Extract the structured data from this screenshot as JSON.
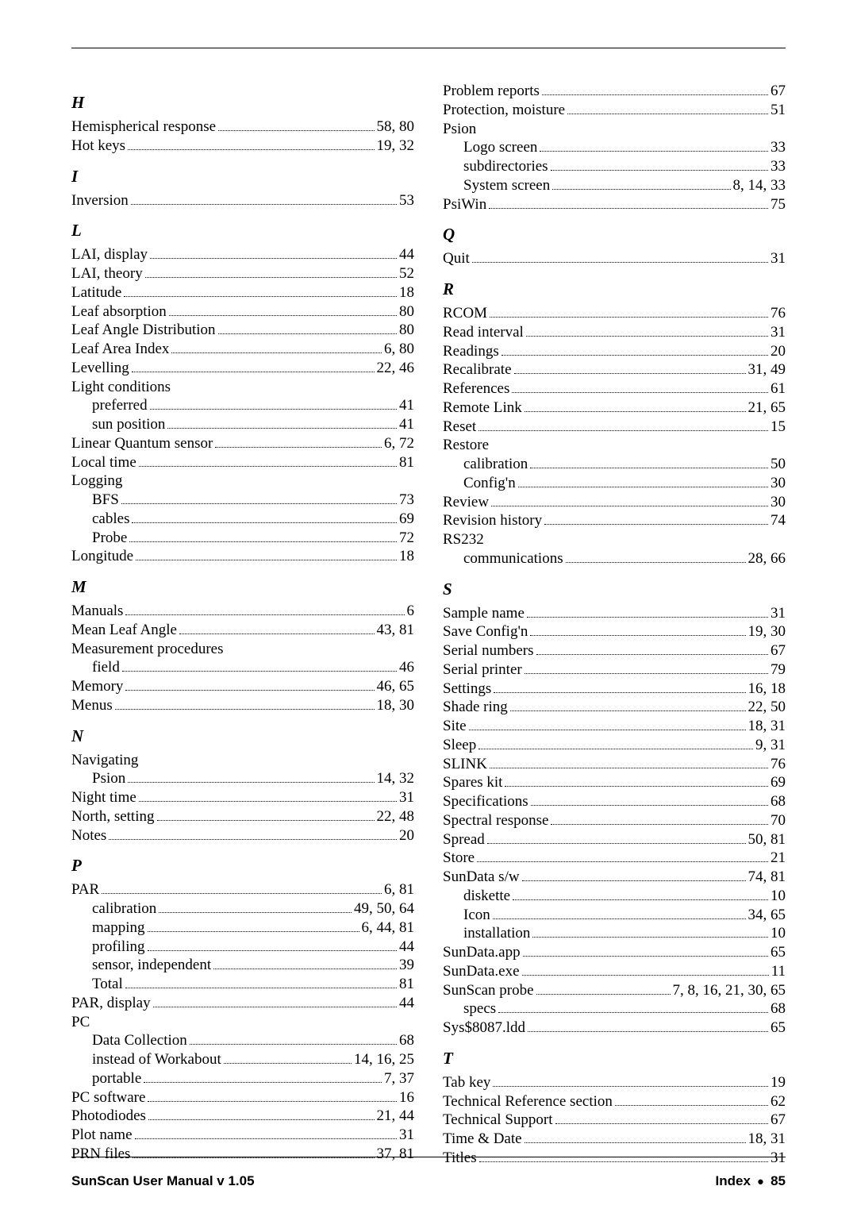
{
  "footer": {
    "left": "SunScan User Manual  v 1.05",
    "right_prefix": "Index",
    "right_page": "85"
  },
  "left": [
    {
      "type": "head",
      "text": "H"
    },
    {
      "type": "entry",
      "label": "Hemispherical response",
      "pages": "58, 80"
    },
    {
      "type": "entry",
      "label": "Hot keys",
      "pages": "19, 32"
    },
    {
      "type": "head",
      "text": "I"
    },
    {
      "type": "entry",
      "label": "Inversion",
      "pages": "53"
    },
    {
      "type": "head",
      "text": "L"
    },
    {
      "type": "entry",
      "label": "LAI, display",
      "pages": "44"
    },
    {
      "type": "entry",
      "label": "LAI, theory",
      "pages": "52"
    },
    {
      "type": "entry",
      "label": "Latitude",
      "pages": "18"
    },
    {
      "type": "entry",
      "label": "Leaf absorption",
      "pages": "80"
    },
    {
      "type": "entry",
      "label": "Leaf Angle Distribution",
      "pages": "80"
    },
    {
      "type": "entry",
      "label": "Leaf Area Index",
      "pages": "6, 80"
    },
    {
      "type": "entry",
      "label": "Levelling",
      "pages": "22, 46"
    },
    {
      "type": "plain",
      "label": "Light conditions"
    },
    {
      "type": "sub",
      "label": "preferred",
      "pages": "41"
    },
    {
      "type": "sub",
      "label": "sun position",
      "pages": "41"
    },
    {
      "type": "entry",
      "label": "Linear Quantum sensor",
      "pages": "6, 72"
    },
    {
      "type": "entry",
      "label": "Local time",
      "pages": "81"
    },
    {
      "type": "plain",
      "label": "Logging"
    },
    {
      "type": "sub",
      "label": "BFS",
      "pages": "73"
    },
    {
      "type": "sub",
      "label": "cables",
      "pages": "69"
    },
    {
      "type": "sub",
      "label": "Probe",
      "pages": "72"
    },
    {
      "type": "entry",
      "label": "Longitude",
      "pages": "18"
    },
    {
      "type": "head",
      "text": "M"
    },
    {
      "type": "entry",
      "label": "Manuals",
      "pages": "6"
    },
    {
      "type": "entry",
      "label": "Mean Leaf Angle",
      "pages": "43, 81"
    },
    {
      "type": "plain",
      "label": "Measurement procedures"
    },
    {
      "type": "sub",
      "label": "field",
      "pages": "46"
    },
    {
      "type": "entry",
      "label": "Memory",
      "pages": "46, 65"
    },
    {
      "type": "entry",
      "label": "Menus",
      "pages": "18, 30"
    },
    {
      "type": "head",
      "text": "N"
    },
    {
      "type": "plain",
      "label": "Navigating"
    },
    {
      "type": "sub",
      "label": "Psion",
      "pages": "14, 32"
    },
    {
      "type": "entry",
      "label": "Night time",
      "pages": "31"
    },
    {
      "type": "entry",
      "label": "North, setting",
      "pages": "22, 48"
    },
    {
      "type": "entry",
      "label": "Notes",
      "pages": "20"
    },
    {
      "type": "head",
      "text": "P"
    },
    {
      "type": "entry",
      "label": "PAR",
      "pages": "6, 81"
    },
    {
      "type": "sub",
      "label": "calibration",
      "pages": "49, 50, 64"
    },
    {
      "type": "sub",
      "label": "mapping",
      "pages": "6, 44, 81"
    },
    {
      "type": "sub",
      "label": "profiling",
      "pages": "44"
    },
    {
      "type": "sub",
      "label": "sensor, independent",
      "pages": "39"
    },
    {
      "type": "sub",
      "label": "Total",
      "pages": "81"
    },
    {
      "type": "entry",
      "label": "PAR, display",
      "pages": "44"
    },
    {
      "type": "plain",
      "label": "PC"
    },
    {
      "type": "sub",
      "label": "Data Collection",
      "pages": "68"
    },
    {
      "type": "sub",
      "label": "instead of Workabout",
      "pages": "14, 16, 25"
    },
    {
      "type": "sub",
      "label": "portable",
      "pages": "7, 37"
    },
    {
      "type": "entry",
      "label": "PC software",
      "pages": "16"
    },
    {
      "type": "entry",
      "label": "Photodiodes",
      "pages": "21, 44"
    },
    {
      "type": "entry",
      "label": "Plot name",
      "pages": "31"
    },
    {
      "type": "entry",
      "label": "PRN files",
      "pages": "37, 81"
    }
  ],
  "right": [
    {
      "type": "entry",
      "label": "Problem reports",
      "pages": "67"
    },
    {
      "type": "entry",
      "label": "Protection, moisture",
      "pages": "51"
    },
    {
      "type": "plain",
      "label": "Psion"
    },
    {
      "type": "sub",
      "label": "Logo screen",
      "pages": "33"
    },
    {
      "type": "sub",
      "label": "subdirectories",
      "pages": "33"
    },
    {
      "type": "sub",
      "label": "System screen",
      "pages": "8, 14, 33"
    },
    {
      "type": "entry",
      "label": "PsiWin",
      "pages": "75"
    },
    {
      "type": "head",
      "text": "Q"
    },
    {
      "type": "entry",
      "label": "Quit",
      "pages": "31"
    },
    {
      "type": "head",
      "text": "R"
    },
    {
      "type": "entry",
      "label": "RCOM",
      "pages": "76"
    },
    {
      "type": "entry",
      "label": "Read interval",
      "pages": "31"
    },
    {
      "type": "entry",
      "label": "Readings",
      "pages": "20"
    },
    {
      "type": "entry",
      "label": "Recalibrate",
      "pages": "31, 49"
    },
    {
      "type": "entry",
      "label": "References",
      "pages": "61"
    },
    {
      "type": "entry",
      "label": "Remote Link",
      "pages": "21, 65"
    },
    {
      "type": "entry",
      "label": "Reset",
      "pages": "15"
    },
    {
      "type": "plain",
      "label": "Restore"
    },
    {
      "type": "sub",
      "label": "calibration",
      "pages": "50"
    },
    {
      "type": "sub",
      "label": "Config'n",
      "pages": "30"
    },
    {
      "type": "entry",
      "label": "Review",
      "pages": "30"
    },
    {
      "type": "entry",
      "label": "Revision history",
      "pages": "74"
    },
    {
      "type": "plain",
      "label": "RS232"
    },
    {
      "type": "sub",
      "label": "communications",
      "pages": "28, 66"
    },
    {
      "type": "head",
      "text": "S"
    },
    {
      "type": "entry",
      "label": "Sample name",
      "pages": "31"
    },
    {
      "type": "entry",
      "label": "Save Config'n",
      "pages": "19, 30"
    },
    {
      "type": "entry",
      "label": "Serial numbers",
      "pages": "67"
    },
    {
      "type": "entry",
      "label": "Serial printer",
      "pages": "79"
    },
    {
      "type": "entry",
      "label": "Settings",
      "pages": "16, 18"
    },
    {
      "type": "entry",
      "label": "Shade ring",
      "pages": "22, 50"
    },
    {
      "type": "entry",
      "label": "Site",
      "pages": "18, 31"
    },
    {
      "type": "entry",
      "label": "Sleep",
      "pages": "9, 31"
    },
    {
      "type": "entry",
      "label": "SLINK",
      "pages": "76"
    },
    {
      "type": "entry",
      "label": "Spares kit",
      "pages": "69"
    },
    {
      "type": "entry",
      "label": "Specifications",
      "pages": "68"
    },
    {
      "type": "entry",
      "label": "Spectral response",
      "pages": "70"
    },
    {
      "type": "entry",
      "label": "Spread",
      "pages": "50, 81"
    },
    {
      "type": "entry",
      "label": "Store",
      "pages": "21"
    },
    {
      "type": "entry",
      "label": "SunData s/w",
      "pages": "74, 81"
    },
    {
      "type": "sub",
      "label": "diskette",
      "pages": "10"
    },
    {
      "type": "sub",
      "label": "Icon",
      "pages": "34, 65"
    },
    {
      "type": "sub",
      "label": "installation",
      "pages": "10"
    },
    {
      "type": "entry",
      "label": "SunData.app",
      "pages": "65"
    },
    {
      "type": "entry",
      "label": "SunData.exe",
      "pages": "11"
    },
    {
      "type": "entry",
      "label": "SunScan probe",
      "pages": "7, 8, 16, 21, 30, 65"
    },
    {
      "type": "sub",
      "label": "specs",
      "pages": "68"
    },
    {
      "type": "entry",
      "label": "Sys$8087.ldd",
      "pages": "65"
    },
    {
      "type": "head",
      "text": "T"
    },
    {
      "type": "entry",
      "label": "Tab key",
      "pages": "19"
    },
    {
      "type": "entry",
      "label": "Technical Reference section",
      "pages": "62"
    },
    {
      "type": "entry",
      "label": "Technical Support",
      "pages": "67"
    },
    {
      "type": "entry",
      "label": "Time & Date",
      "pages": "18, 31"
    },
    {
      "type": "entry",
      "label": "Titles",
      "pages": "31"
    }
  ]
}
